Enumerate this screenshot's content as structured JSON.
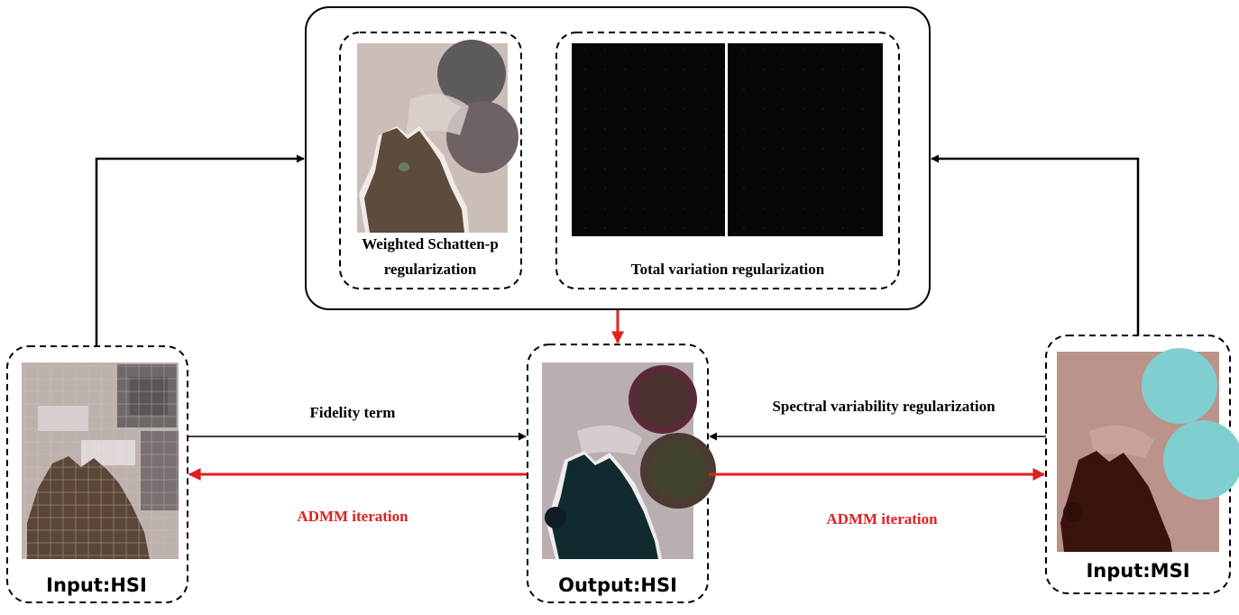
{
  "labels": {
    "weighted_line1": "Weighted Schatten-p",
    "weighted_line2": "regularization",
    "tv": "Total variation regularization",
    "fidelity": "Fidelity term",
    "spectral": "Spectral variability regularization",
    "admm_left": "ADMM iteration",
    "admm_right": "ADMM iteration",
    "input_hsi": "Input:HSI",
    "output_hsi": "Output:HSI",
    "input_msi": "Input:MSI"
  },
  "colors": {
    "line": "#000000",
    "admm": "#e02020",
    "sand": "#bdb1ac",
    "lake_hsi": "#5b4637",
    "lake_out": "#112a2f",
    "lake_msi": "#3a130a",
    "circle_msi": "#7fcfd0",
    "circle_out": "#5a2a38"
  }
}
